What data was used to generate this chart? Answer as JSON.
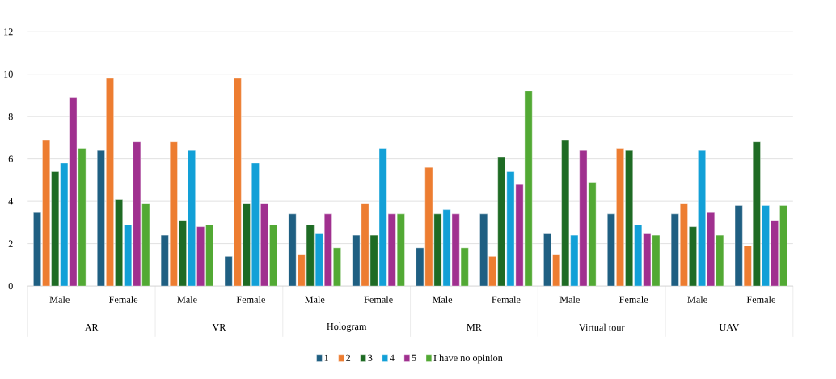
{
  "chart_data": {
    "type": "bar",
    "categories": [
      "Male",
      "Female",
      "Male",
      "Female",
      "Male",
      "Female",
      "Male",
      "Female",
      "Male",
      "Female",
      "Male",
      "Female"
    ],
    "annotations": [
      "AR",
      "VR",
      "Hologram",
      "MR",
      "Virtual tour",
      "UAV"
    ],
    "series": [
      {
        "name": "1",
        "color": "#1f5f82",
        "values": [
          3.5,
          6.4,
          2.4,
          1.4,
          3.4,
          2.4,
          1.8,
          3.4,
          2.5,
          3.4,
          3.4,
          3.8
        ]
      },
      {
        "name": "2",
        "color": "#ed7d31",
        "values": [
          6.9,
          9.8,
          6.8,
          9.8,
          1.5,
          3.9,
          5.6,
          1.4,
          1.5,
          6.5,
          3.9,
          1.9
        ]
      },
      {
        "name": "3",
        "color": "#1e6b24",
        "values": [
          5.4,
          4.1,
          3.1,
          3.9,
          2.9,
          2.4,
          3.4,
          6.1,
          6.9,
          6.4,
          2.8,
          6.8
        ]
      },
      {
        "name": "4",
        "color": "#12a0d7",
        "values": [
          5.8,
          2.9,
          6.4,
          5.8,
          2.5,
          6.5,
          3.6,
          5.4,
          2.4,
          2.9,
          6.4,
          3.8
        ]
      },
      {
        "name": "5",
        "color": "#a0308f",
        "values": [
          8.9,
          6.8,
          2.8,
          3.9,
          3.4,
          3.4,
          3.4,
          4.8,
          6.4,
          2.5,
          3.5,
          3.1
        ]
      },
      {
        "name": "I have no opinion",
        "color": "#52a934",
        "values": [
          6.5,
          3.9,
          2.9,
          2.9,
          1.8,
          3.4,
          1.8,
          9.2,
          4.9,
          2.4,
          2.4,
          3.8
        ]
      }
    ],
    "ylim": [
      0,
      12
    ],
    "yticks": [
      0,
      2,
      4,
      6,
      8,
      10,
      12
    ],
    "grid": "y",
    "legend": "bottom"
  }
}
